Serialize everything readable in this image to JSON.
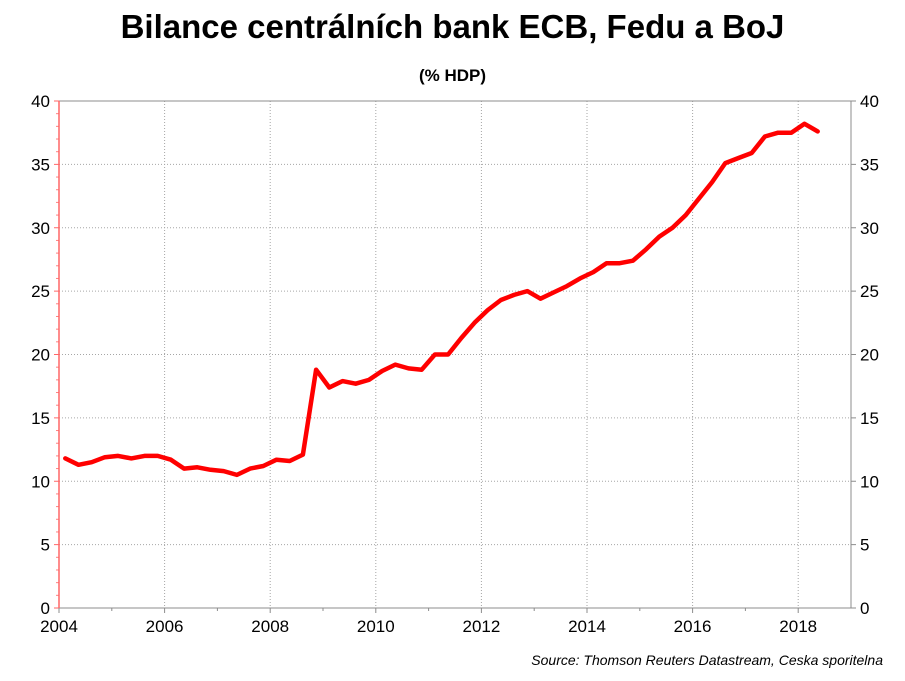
{
  "chart_data": {
    "type": "line",
    "title": "Bilance centrálních bank ECB, Fedu a BoJ",
    "subtitle": "(% HDP)",
    "source": "Source: Thomson Reuters Datastream, Ceska sporitelna",
    "xlim": [
      2004,
      2019
    ],
    "ylim": [
      0,
      40
    ],
    "x_ticks": [
      2004,
      2006,
      2008,
      2010,
      2012,
      2014,
      2016,
      2018
    ],
    "x_tick_labels": [
      "2004",
      "2006",
      "2008",
      "2010",
      "2012",
      "2014",
      "2016",
      "2018"
    ],
    "y_ticks": [
      0,
      5,
      10,
      15,
      20,
      25,
      30,
      35,
      40
    ],
    "y_tick_labels": [
      "0",
      "5",
      "10",
      "15",
      "20",
      "25",
      "30",
      "35",
      "40"
    ],
    "grid": true,
    "dual_y_axis": true,
    "series": [
      {
        "color": "#ff0000",
        "x": [
          2004.12,
          2004.37,
          2004.62,
          2004.87,
          2005.12,
          2005.37,
          2005.62,
          2005.87,
          2006.12,
          2006.37,
          2006.62,
          2006.87,
          2007.12,
          2007.37,
          2007.62,
          2007.87,
          2008.12,
          2008.37,
          2008.62,
          2008.87,
          2009.12,
          2009.37,
          2009.62,
          2009.87,
          2010.12,
          2010.37,
          2010.62,
          2010.87,
          2011.12,
          2011.37,
          2011.62,
          2011.87,
          2012.12,
          2012.37,
          2012.62,
          2012.87,
          2013.12,
          2013.37,
          2013.62,
          2013.87,
          2014.12,
          2014.37,
          2014.62,
          2014.87,
          2015.12,
          2015.37,
          2015.62,
          2015.87,
          2016.12,
          2016.37,
          2016.62,
          2016.87,
          2017.12,
          2017.37,
          2017.62,
          2017.87,
          2018.12,
          2018.37
        ],
        "y": [
          11.8,
          11.3,
          11.5,
          11.9,
          12.0,
          11.8,
          12.0,
          12.0,
          11.7,
          11.0,
          11.1,
          10.9,
          10.8,
          10.5,
          11.0,
          11.2,
          11.7,
          11.6,
          12.1,
          18.8,
          17.4,
          17.9,
          17.7,
          18.0,
          18.7,
          19.2,
          18.9,
          18.8,
          20.0,
          20.0,
          21.3,
          22.5,
          23.5,
          24.3,
          24.7,
          25.0,
          24.4,
          24.9,
          25.4,
          26.0,
          26.5,
          27.2,
          27.2,
          27.4,
          28.3,
          29.3,
          30.0,
          31.0,
          32.3,
          33.6,
          35.1,
          35.5,
          35.9,
          37.2,
          37.5,
          37.5,
          38.2,
          37.6
        ]
      }
    ]
  }
}
